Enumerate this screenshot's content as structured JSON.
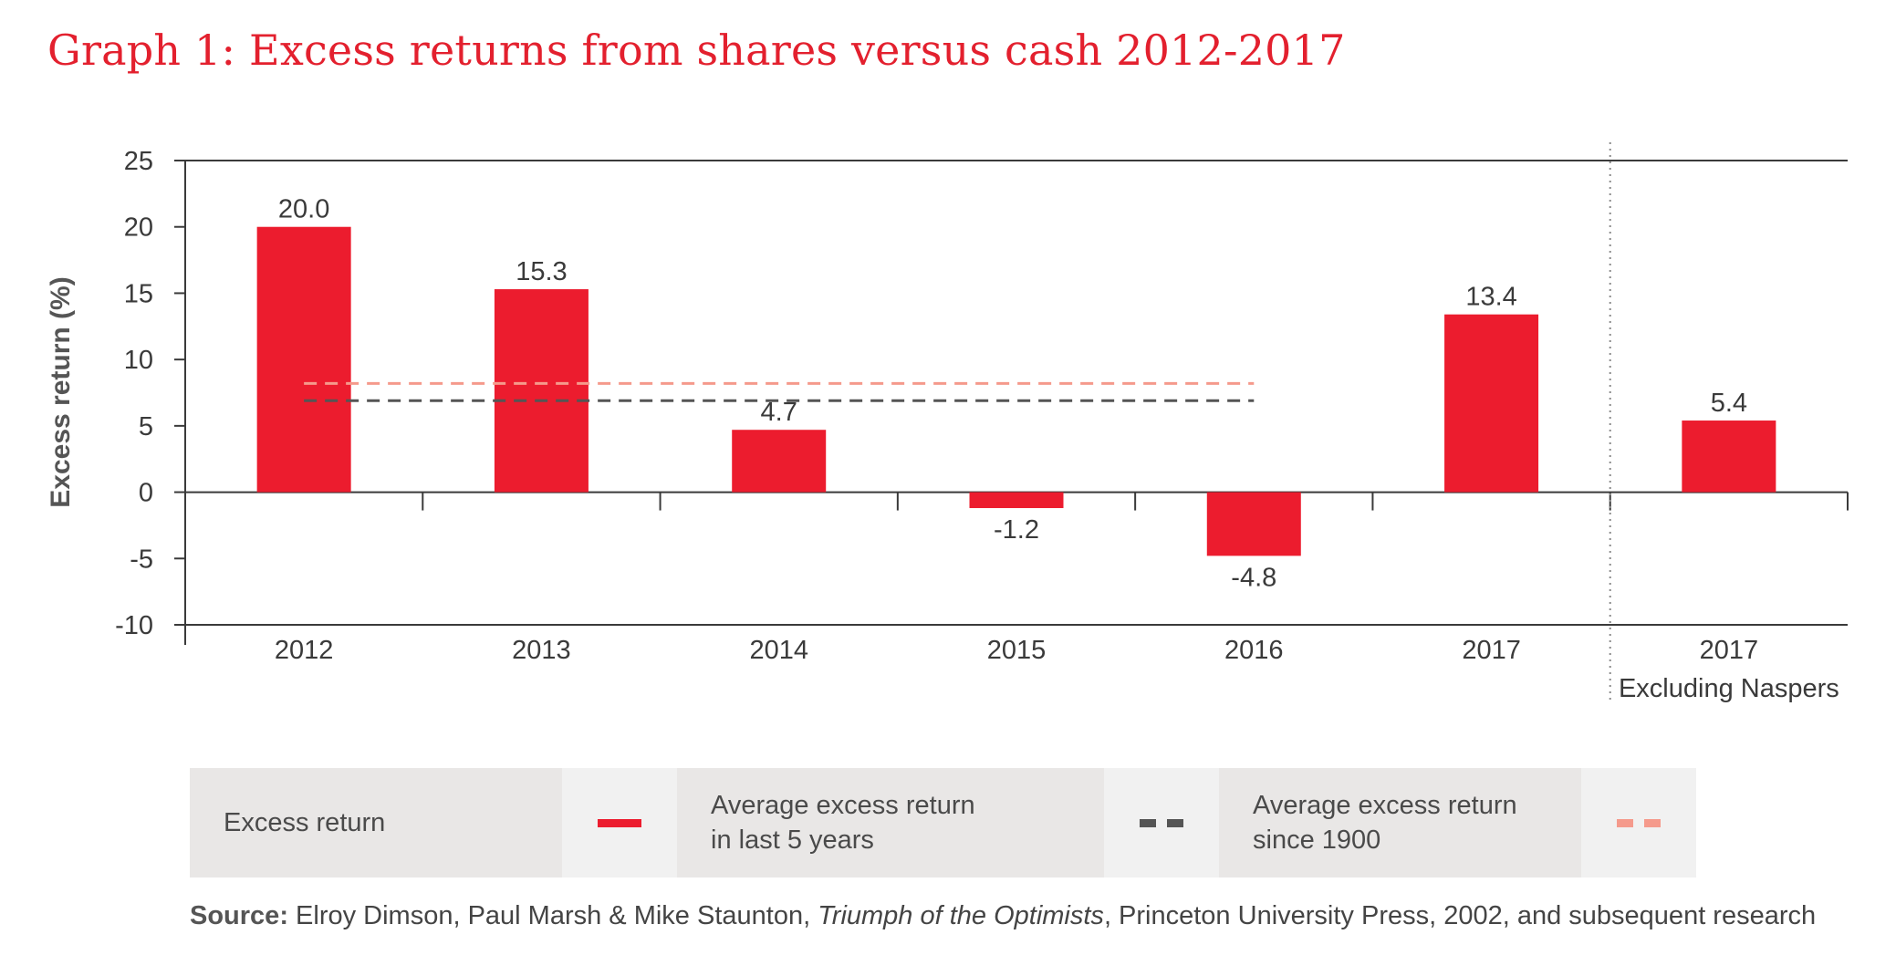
{
  "title": "Graph 1: Excess returns from shares versus cash 2012-2017",
  "chart_data": {
    "type": "bar",
    "categories": [
      "2012",
      "2013",
      "2014",
      "2015",
      "2016",
      "2017",
      "2017"
    ],
    "category_sublabels": [
      "",
      "",
      "",
      "",
      "",
      "",
      "Excluding Naspers"
    ],
    "values": [
      20.0,
      15.3,
      4.7,
      -1.2,
      -4.8,
      13.4,
      5.4
    ],
    "value_labels": [
      "20.0",
      "15.3",
      "4.7",
      "-1.2",
      "-4.8",
      "13.4",
      "5.4"
    ],
    "ylabel": "Excess return (%)",
    "xlabel": "",
    "ylim": [
      -10,
      25
    ],
    "yticks": [
      25,
      20,
      15,
      10,
      5,
      0,
      -5,
      -10
    ],
    "reference_lines": [
      {
        "name": "Average excess return in last 5 years",
        "value": 6.9,
        "color": "#555555",
        "style": "dashed",
        "span_categories": [
          "2012",
          "2016"
        ]
      },
      {
        "name": "Average excess return since 1900",
        "value": 8.2,
        "color": "#f59a8c",
        "style": "dashed",
        "span_categories": [
          "2012",
          "2016"
        ]
      }
    ],
    "separator_before_index": 6,
    "grid": false,
    "bar_color": "#ec1c2e"
  },
  "legend": [
    {
      "label_line1": "Excess return",
      "label_line2": "",
      "swatch": "solid",
      "color": "#ec1c2e"
    },
    {
      "label_line1": "Average excess return",
      "label_line2": "in last 5 years",
      "swatch": "dash",
      "color": "#555555"
    },
    {
      "label_line1": "Average excess return",
      "label_line2": "since 1900",
      "swatch": "dash",
      "color": "#f59a8c"
    }
  ],
  "source": {
    "prefix": "Source:",
    "text_before_italic": " Elroy Dimson, Paul Marsh & Mike Staunton, ",
    "italic": "Triumph of the Optimists",
    "text_after_italic": ", Princeton University Press, 2002, and subsequent research"
  }
}
